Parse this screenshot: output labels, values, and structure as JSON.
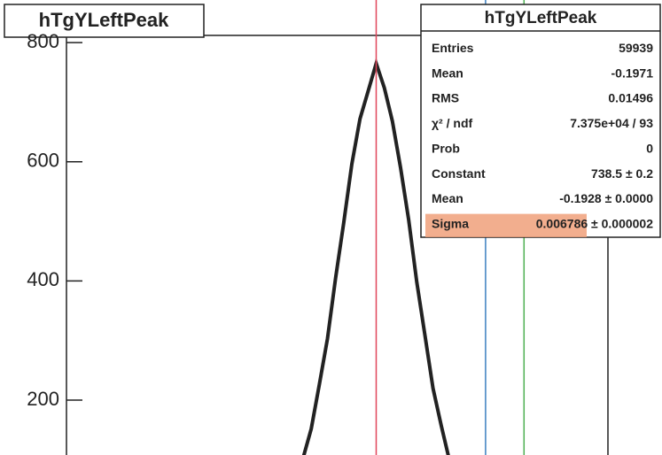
{
  "chart_data": {
    "type": "line",
    "title": "hTgYLeftPeak",
    "x": [
      -0.2063,
      -0.2048,
      -0.2033,
      -0.2018,
      -0.2003,
      -0.1988,
      -0.1973,
      -0.1958,
      -0.1943,
      -0.1928,
      -0.1913,
      -0.1898,
      -0.1883,
      -0.1868,
      -0.1853,
      -0.1838,
      -0.1823,
      -0.1808,
      -0.1793
    ],
    "values": [
      103,
      152,
      226,
      303,
      405,
      497,
      596,
      672,
      718,
      765,
      724,
      668,
      590,
      502,
      398,
      309,
      220,
      158,
      100
    ],
    "color": "#222222",
    "xlim": [
      -0.25,
      -0.15
    ],
    "ylim": [
      108,
      812
    ],
    "yticks": [
      200,
      400,
      600,
      800
    ],
    "vlines": [
      {
        "x": -0.1928,
        "color": "#e0455a"
      },
      {
        "x": -0.1726,
        "color": "#3a7fc0"
      },
      {
        "x": -0.1655,
        "color": "#4caf50"
      }
    ],
    "stats": {
      "title": "hTgYLeftPeak",
      "rows": [
        [
          "Entries",
          "59939"
        ],
        [
          "Mean",
          "-0.1971"
        ],
        [
          "RMS",
          "0.01496"
        ],
        [
          "χ² / ndf",
          "7.375e+04 / 93"
        ],
        [
          "Prob",
          "0"
        ],
        [
          "Constant",
          "738.5 ± 0.2"
        ],
        [
          "Mean",
          "-0.1928 ± 0.0000"
        ],
        [
          "Sigma",
          "0.006786 ± 0.000002"
        ]
      ],
      "highlight": 7,
      "highlight_color": "#f0a07a"
    }
  }
}
